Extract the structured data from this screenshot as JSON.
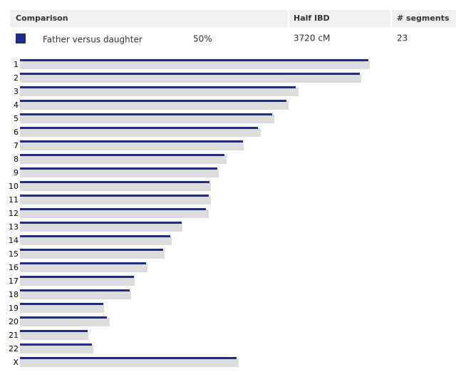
{
  "comparison_table": {
    "headers": [
      "Comparison",
      "Half IBD",
      "# segments"
    ],
    "row": {
      "color": "#1f2a8a",
      "name": "Father versus daughter",
      "percent": "50%",
      "half_ibd": "3720 cM",
      "segments": "23"
    }
  },
  "chart_data": {
    "type": "bar",
    "orientation": "horizontal",
    "categories": [
      "1",
      "2",
      "3",
      "4",
      "5",
      "6",
      "7",
      "8",
      "9",
      "10",
      "11",
      "12",
      "13",
      "14",
      "15",
      "16",
      "17",
      "18",
      "19",
      "20",
      "21",
      "22",
      "X"
    ],
    "xlim": [
      0,
      612
    ],
    "series": [
      {
        "color": "#dcdcdc",
        "values": [
          491,
          479,
          391,
          377,
          357,
          338,
          314,
          290,
          279,
          268,
          268,
          265,
          228,
          213,
          203,
          179,
          161,
          156,
          118,
          126,
          96,
          103,
          307
        ]
      },
      {
        "color": "#1f2a8a",
        "values": [
          489,
          477,
          387,
          374,
          354,
          334,
          313,
          287,
          277,
          266,
          265,
          261,
          227,
          211,
          201,
          177,
          160,
          154,
          117,
          122,
          95,
          101,
          304
        ]
      }
    ]
  }
}
